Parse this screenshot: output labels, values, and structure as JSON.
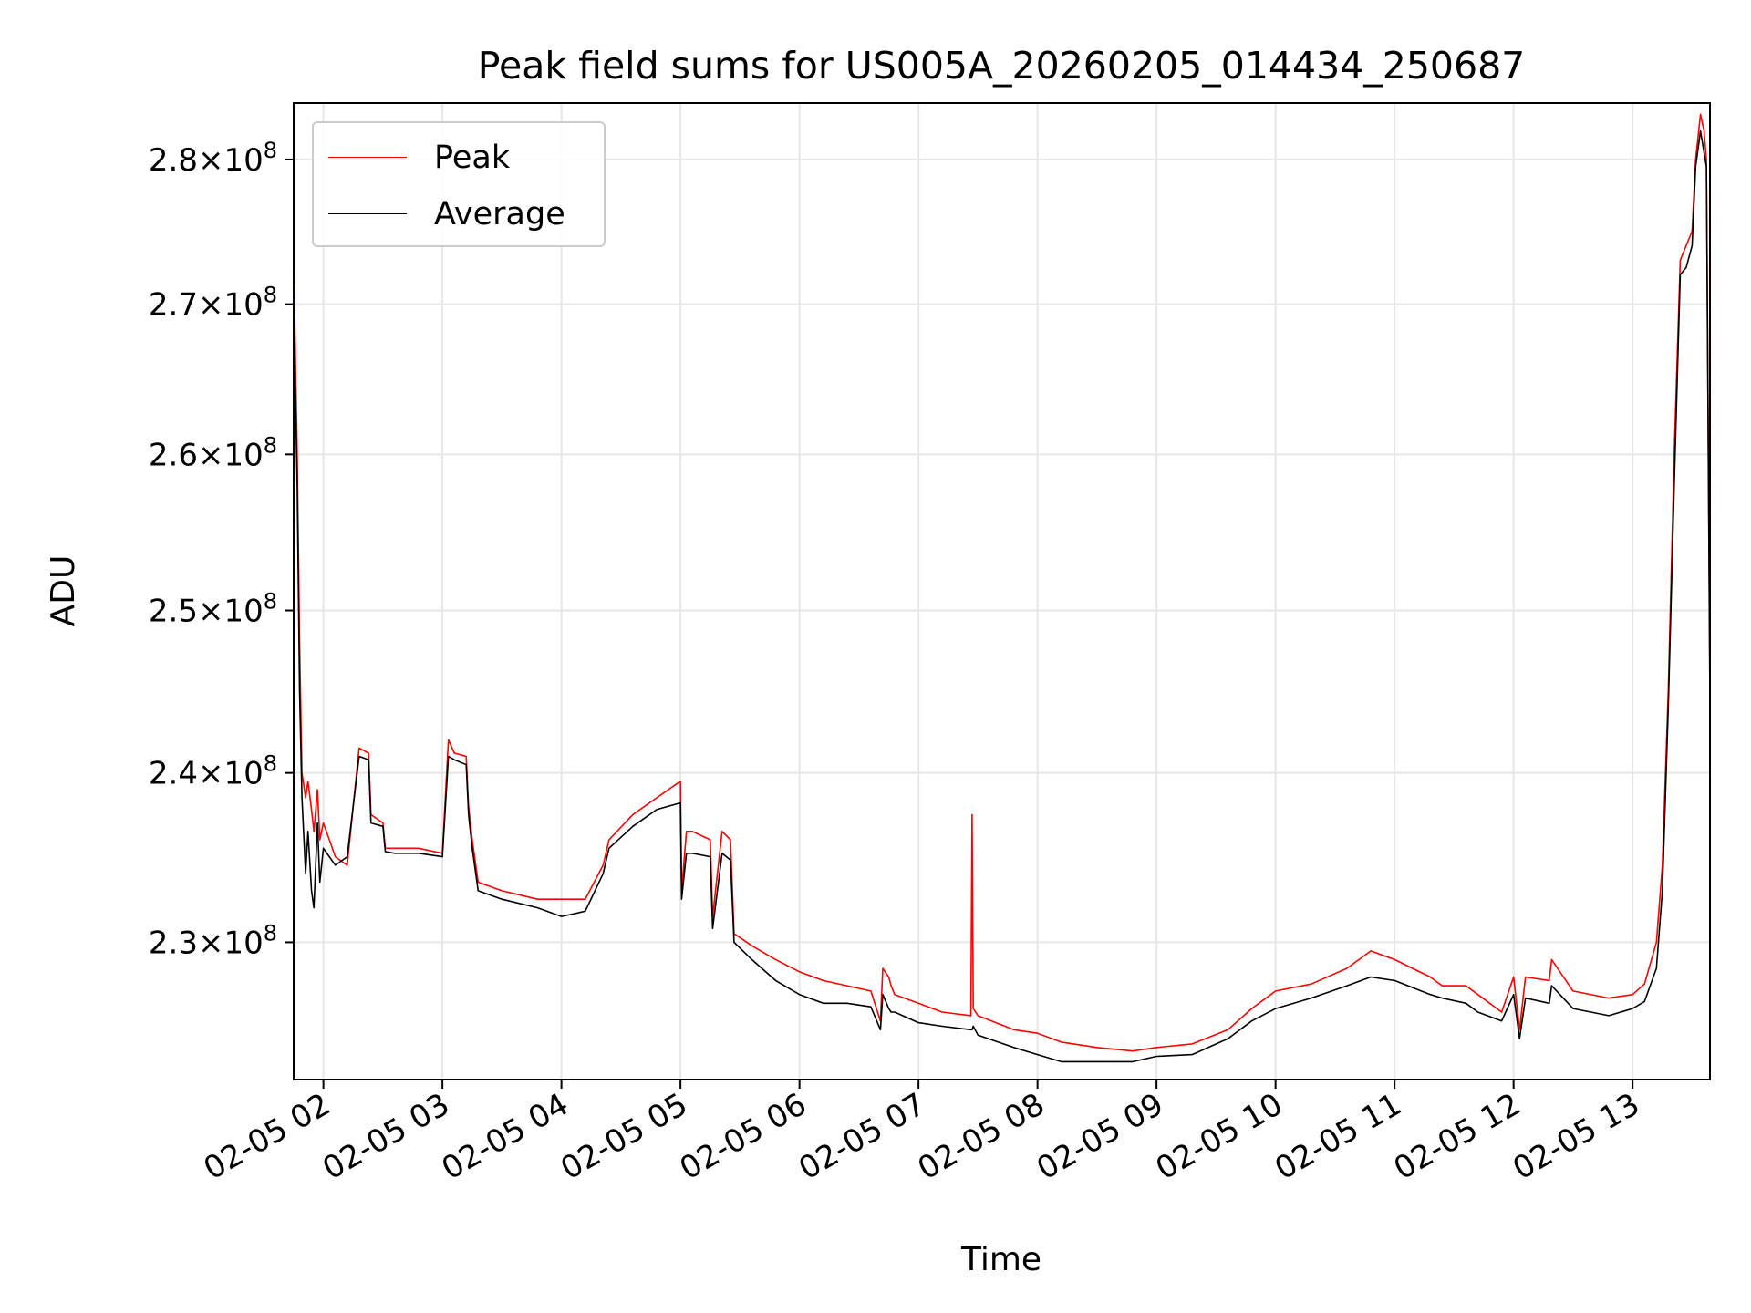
{
  "chart_data": {
    "type": "line",
    "title": "Peak field sums for US005A_20260205_014434_250687",
    "xlabel": "Time",
    "ylabel": "ADU",
    "x_range_hours": [
      1.75,
      13.65
    ],
    "ylim": [
      222200000.0,
      284000000.0
    ],
    "y_scale": "log",
    "grid": true,
    "legend_position": "upper-left",
    "x_ticks": [
      {
        "hour": 2,
        "label": "02-05 02"
      },
      {
        "hour": 3,
        "label": "02-05 03"
      },
      {
        "hour": 4,
        "label": "02-05 04"
      },
      {
        "hour": 5,
        "label": "02-05 05"
      },
      {
        "hour": 6,
        "label": "02-05 06"
      },
      {
        "hour": 7,
        "label": "02-05 07"
      },
      {
        "hour": 8,
        "label": "02-05 08"
      },
      {
        "hour": 9,
        "label": "02-05 09"
      },
      {
        "hour": 10,
        "label": "02-05 10"
      },
      {
        "hour": 11,
        "label": "02-05 11"
      },
      {
        "hour": 12,
        "label": "02-05 12"
      },
      {
        "hour": 13,
        "label": "02-05 13"
      }
    ],
    "y_ticks": [
      {
        "value": 230000000.0,
        "mantissa": "2.3",
        "exponent": "8"
      },
      {
        "value": 240000000.0,
        "mantissa": "2.4",
        "exponent": "8"
      },
      {
        "value": 250000000.0,
        "mantissa": "2.5",
        "exponent": "8"
      },
      {
        "value": 260000000.0,
        "mantissa": "2.6",
        "exponent": "8"
      },
      {
        "value": 270000000.0,
        "mantissa": "2.7",
        "exponent": "8"
      },
      {
        "value": 280000000.0,
        "mantissa": "2.8",
        "exponent": "8"
      }
    ],
    "series": [
      {
        "name": "Peak",
        "color": "#ff0000",
        "x_hours": [
          1.75,
          1.78,
          1.8,
          1.82,
          1.85,
          1.87,
          1.9,
          1.92,
          1.95,
          1.97,
          2.0,
          2.05,
          2.1,
          2.2,
          2.3,
          2.38,
          2.4,
          2.5,
          2.52,
          2.6,
          2.8,
          3.0,
          3.05,
          3.1,
          3.2,
          3.22,
          3.25,
          3.3,
          3.5,
          3.8,
          4.0,
          4.2,
          4.35,
          4.4,
          4.6,
          4.8,
          5.0,
          5.01,
          5.05,
          5.1,
          5.25,
          5.27,
          5.35,
          5.42,
          5.45,
          5.6,
          5.8,
          6.0,
          6.2,
          6.4,
          6.6,
          6.68,
          6.7,
          6.75,
          6.77,
          6.8,
          7.0,
          7.2,
          7.44,
          7.45,
          7.46,
          7.5,
          7.8,
          8.0,
          8.2,
          8.5,
          8.8,
          9.0,
          9.3,
          9.6,
          9.8,
          10.0,
          10.3,
          10.6,
          10.8,
          11.0,
          11.3,
          11.4,
          11.6,
          11.7,
          11.9,
          12.0,
          12.05,
          12.1,
          12.3,
          12.32,
          12.5,
          12.8,
          13.0,
          13.1,
          13.2,
          13.25,
          13.3,
          13.35,
          13.4,
          13.45,
          13.5,
          13.53,
          13.57,
          13.6,
          13.62,
          13.65
        ],
        "values": [
          273000000.0,
          260000000.0,
          248000000.0,
          240000000.0,
          238500000.0,
          239500000.0,
          237800000.0,
          236500000.0,
          239000000.0,
          236000000.0,
          237000000.0,
          236000000.0,
          235000000.0,
          234500000.0,
          241500000.0,
          241200000.0,
          237500000.0,
          237000000.0,
          235500000.0,
          235500000.0,
          235500000.0,
          235200000.0,
          242000000.0,
          241200000.0,
          241000000.0,
          238000000.0,
          236000000.0,
          233500000.0,
          233000000.0,
          232500000.0,
          232500000.0,
          232500000.0,
          234500000.0,
          236000000.0,
          237500000.0,
          238500000.0,
          239500000.0,
          233000000.0,
          236500000.0,
          236500000.0,
          236000000.0,
          231500000.0,
          236500000.0,
          236000000.0,
          230500000.0,
          229800000.0,
          229000000.0,
          228300000.0,
          227800000.0,
          227500000.0,
          227200000.0,
          225500000.0,
          228500000.0,
          228000000.0,
          227500000.0,
          227000000.0,
          226500000.0,
          226000000.0,
          225800000.0,
          237500000.0,
          226200000.0,
          225800000.0,
          225000000.0,
          224800000.0,
          224300000.0,
          224000000.0,
          223800000.0,
          224000000.0,
          224200000.0,
          225000000.0,
          226200000.0,
          227200000.0,
          227600000.0,
          228500000.0,
          229500000.0,
          229000000.0,
          228000000.0,
          227500000.0,
          227500000.0,
          227000000.0,
          226000000.0,
          228000000.0,
          225000000.0,
          228000000.0,
          227800000.0,
          229000000.0,
          227200000.0,
          226800000.0,
          227000000.0,
          227600000.0,
          230000000.0,
          234500000.0,
          245000000.0,
          260000000.0,
          273000000.0,
          274000000.0,
          275000000.0,
          280000000.0,
          283200000.0,
          282000000.0,
          280000000.0,
          245000000.0
        ]
      },
      {
        "name": "Average",
        "color": "#000000",
        "x_hours": [
          1.75,
          1.78,
          1.8,
          1.82,
          1.85,
          1.87,
          1.9,
          1.92,
          1.95,
          1.97,
          2.0,
          2.05,
          2.1,
          2.2,
          2.3,
          2.38,
          2.4,
          2.5,
          2.52,
          2.6,
          2.8,
          3.0,
          3.05,
          3.1,
          3.2,
          3.22,
          3.25,
          3.3,
          3.5,
          3.8,
          4.0,
          4.2,
          4.35,
          4.4,
          4.6,
          4.8,
          5.0,
          5.01,
          5.05,
          5.1,
          5.25,
          5.27,
          5.35,
          5.42,
          5.45,
          5.6,
          5.8,
          6.0,
          6.2,
          6.4,
          6.6,
          6.68,
          6.7,
          6.75,
          6.77,
          6.8,
          7.0,
          7.2,
          7.44,
          7.45,
          7.46,
          7.5,
          7.8,
          8.0,
          8.2,
          8.5,
          8.8,
          9.0,
          9.3,
          9.6,
          9.8,
          10.0,
          10.3,
          10.6,
          10.8,
          11.0,
          11.3,
          11.4,
          11.6,
          11.7,
          11.9,
          12.0,
          12.05,
          12.1,
          12.3,
          12.32,
          12.5,
          12.8,
          13.0,
          13.1,
          13.2,
          13.25,
          13.3,
          13.35,
          13.4,
          13.45,
          13.5,
          13.53,
          13.57,
          13.6,
          13.62,
          13.65
        ],
        "values": [
          270000000.0,
          258000000.0,
          245000000.0,
          238500000.0,
          234000000.0,
          236500000.0,
          233000000.0,
          232000000.0,
          237000000.0,
          233500000.0,
          235500000.0,
          235000000.0,
          234500000.0,
          235000000.0,
          241000000.0,
          240800000.0,
          237000000.0,
          236800000.0,
          235300000.0,
          235200000.0,
          235200000.0,
          235000000.0,
          241000000.0,
          240800000.0,
          240500000.0,
          237500000.0,
          235500000.0,
          233000000.0,
          232500000.0,
          232000000.0,
          231500000.0,
          231800000.0,
          234000000.0,
          235500000.0,
          236800000.0,
          237800000.0,
          238200000.0,
          232500000.0,
          235200000.0,
          235200000.0,
          235000000.0,
          230800000.0,
          235200000.0,
          234800000.0,
          230000000.0,
          229000000.0,
          227800000.0,
          227000000.0,
          226500000.0,
          226500000.0,
          226300000.0,
          225000000.0,
          227000000.0,
          226200000.0,
          226000000.0,
          226000000.0,
          225400000.0,
          225200000.0,
          225000000.0,
          225000000.0,
          225200000.0,
          224700000.0,
          224000000.0,
          223600000.0,
          223200000.0,
          223200000.0,
          223200000.0,
          223500000.0,
          223600000.0,
          224500000.0,
          225500000.0,
          226200000.0,
          226800000.0,
          227500000.0,
          228000000.0,
          227800000.0,
          227000000.0,
          226800000.0,
          226500000.0,
          226000000.0,
          225500000.0,
          227000000.0,
          224500000.0,
          226800000.0,
          226500000.0,
          227500000.0,
          226200000.0,
          225800000.0,
          226200000.0,
          226600000.0,
          228500000.0,
          233000000.0,
          244000000.0,
          258000000.0,
          272000000.0,
          272500000.0,
          274000000.0,
          279500000.0,
          282000000.0,
          280500000.0,
          279500000.0,
          244000000.0
        ]
      }
    ]
  }
}
